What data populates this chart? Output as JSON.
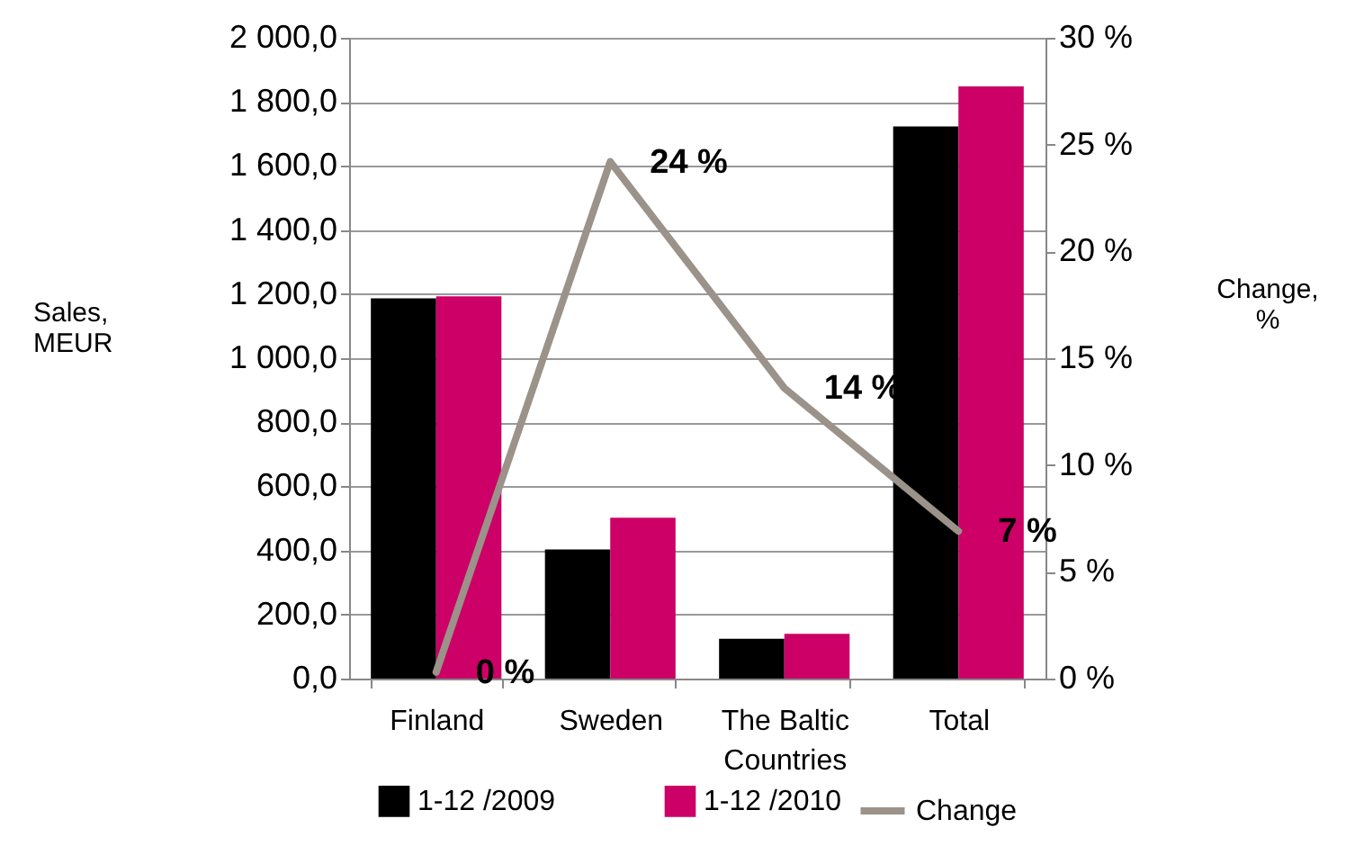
{
  "chart_data": {
    "type": "bar",
    "categories": [
      "Finland",
      "Sweden",
      "The Baltic Countries",
      "Total"
    ],
    "ylabel": "Sales, MEUR",
    "y2label": "Change, %",
    "series": [
      {
        "name": "1-12 /2009",
        "color": "#000000",
        "values": [
          1187,
          403,
          124,
          1723
        ]
      },
      {
        "name": "1-12 /2010",
        "color": "#cc0066",
        "values": [
          1193,
          502,
          140,
          1848
        ]
      },
      {
        "name": "Change",
        "type": "line",
        "axis": "y2",
        "color": "#9b928a",
        "values": [
          0.3,
          24.2,
          13.6,
          6.9
        ],
        "value_labels": [
          "0 %",
          "24 %",
          "14 %",
          "7 %"
        ]
      }
    ],
    "ylim": [
      0,
      2000
    ],
    "yticks": [
      {
        "value": 0,
        "label": "0,0"
      },
      {
        "value": 200,
        "label": "200,0"
      },
      {
        "value": 400,
        "label": "400,0"
      },
      {
        "value": 600,
        "label": "600,0"
      },
      {
        "value": 800,
        "label": "800,0"
      },
      {
        "value": 1000,
        "label": "1 000,0"
      },
      {
        "value": 1200,
        "label": "1 200,0"
      },
      {
        "value": 1400,
        "label": "1 400,0"
      },
      {
        "value": 1600,
        "label": "1 600,0"
      },
      {
        "value": 1800,
        "label": "1 800,0"
      },
      {
        "value": 2000,
        "label": "2 000,0"
      }
    ],
    "y2lim": [
      0,
      30
    ],
    "y2ticks": [
      {
        "value": 0,
        "label": "0 %"
      },
      {
        "value": 5,
        "label": "5 %"
      },
      {
        "value": 10,
        "label": "10 %"
      },
      {
        "value": 15,
        "label": "15 %"
      },
      {
        "value": 20,
        "label": "20 %"
      },
      {
        "value": 25,
        "label": "25 %"
      },
      {
        "value": 30,
        "label": "30 %"
      }
    ],
    "grid": "y",
    "legend": "bottom"
  }
}
